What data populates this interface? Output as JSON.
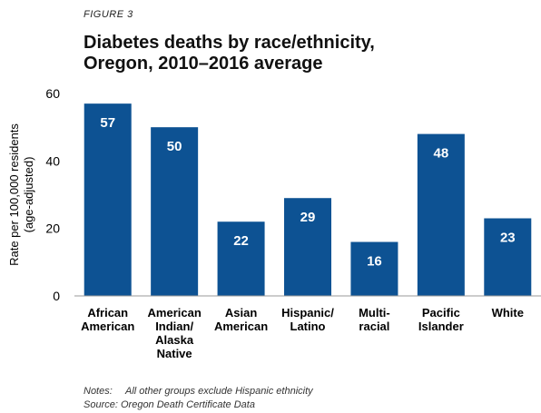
{
  "figure_label": "FIGURE 3",
  "title_line1": "Diabetes deaths by race/ethnicity,",
  "title_line2": "Oregon, 2010–2016 average",
  "notes": {
    "notes_tag": "Notes:",
    "notes_text": "All other groups exclude Hispanic ethnicity",
    "source_tag": "Source:",
    "source_text": "Oregon Death Certificate Data"
  },
  "chart_data": {
    "type": "bar",
    "title": "Diabetes deaths by race/ethnicity, Oregon, 2010–2016 average",
    "categories": [
      [
        "African",
        "American"
      ],
      [
        "American",
        "Indian/",
        "Alaska",
        "Native"
      ],
      [
        "Asian",
        "American"
      ],
      [
        "Hispanic/",
        "Latino"
      ],
      [
        "Multi-",
        "racial"
      ],
      [
        "Pacific",
        "Islander"
      ],
      [
        "White"
      ]
    ],
    "values": [
      57,
      50,
      22,
      29,
      16,
      48,
      23
    ],
    "ylabel_line1": "Rate per 100,000 residents",
    "ylabel_line2": "(age-adjusted)",
    "xlabel": "",
    "ylim": [
      0,
      60
    ],
    "yticks": [
      0,
      20,
      40,
      60
    ],
    "grid": false,
    "bar_color": "#0d5293",
    "label_color": "#ffffff"
  }
}
